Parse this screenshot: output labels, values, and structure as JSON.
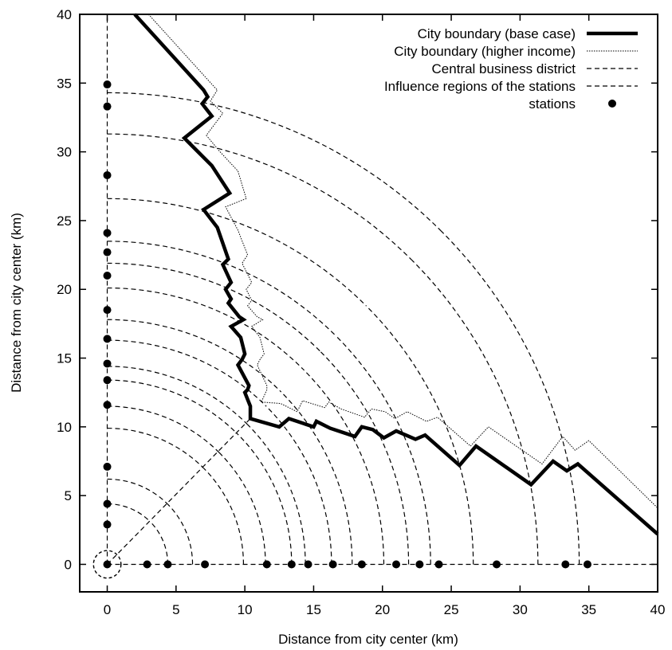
{
  "chart_data": {
    "type": "line",
    "xlabel": "Distance from city center (km)",
    "ylabel": "Distance from city center (km)",
    "xlim": [
      -2,
      40
    ],
    "ylim": [
      -2,
      40
    ],
    "xticks": [
      "0",
      "5",
      "10",
      "15",
      "20",
      "25",
      "30",
      "35",
      "40"
    ],
    "yticks": [
      "0",
      "5",
      "10",
      "15",
      "20",
      "25",
      "30",
      "35",
      "40"
    ],
    "grid": false,
    "legend_position": "top-right",
    "series": [
      {
        "name": "City boundary (base case)",
        "style": "thick-solid",
        "points": [
          [
            2,
            40
          ],
          [
            7,
            34.5
          ],
          [
            7.3,
            34
          ],
          [
            6.9,
            33.5
          ],
          [
            7.6,
            32.6
          ],
          [
            5.6,
            31
          ],
          [
            6.6,
            30
          ],
          [
            7.6,
            29
          ],
          [
            8.9,
            27
          ],
          [
            7,
            25.8
          ],
          [
            8,
            24.5
          ],
          [
            8.8,
            22.2
          ],
          [
            8.4,
            21.8
          ],
          [
            9,
            20.5
          ],
          [
            8.6,
            20
          ],
          [
            9,
            19.3
          ],
          [
            8.8,
            19
          ],
          [
            9.6,
            18
          ],
          [
            9.9,
            17.8
          ],
          [
            9,
            17.3
          ],
          [
            9.7,
            16.5
          ],
          [
            10,
            15.3
          ],
          [
            9.8,
            14.9
          ],
          [
            9.5,
            14.5
          ],
          [
            10.3,
            13
          ],
          [
            10.2,
            12.7
          ],
          [
            10,
            12.5
          ],
          [
            10.4,
            11.5
          ],
          [
            10.4,
            10.6
          ],
          [
            12.5,
            10
          ],
          [
            13.2,
            10.6
          ],
          [
            15,
            10
          ],
          [
            15.2,
            10.4
          ],
          [
            16.2,
            9.9
          ],
          [
            18,
            9.3
          ],
          [
            18.5,
            10
          ],
          [
            19.3,
            9.8
          ],
          [
            20.1,
            9.2
          ],
          [
            21,
            9.7
          ],
          [
            21.7,
            9.4
          ],
          [
            22.4,
            9.1
          ],
          [
            23.1,
            9.4
          ],
          [
            25.6,
            7.2
          ],
          [
            26.8,
            8.6
          ],
          [
            30.8,
            5.8
          ],
          [
            32.4,
            7.5
          ],
          [
            33.4,
            6.8
          ],
          [
            34.2,
            7.3
          ],
          [
            40,
            2.2
          ]
        ]
      },
      {
        "name": "City boundary (higher income)",
        "style": "thin-dotted",
        "points": [
          [
            3,
            40
          ],
          [
            7.8,
            34.7
          ],
          [
            8,
            34.5
          ],
          [
            7.5,
            33.7
          ],
          [
            8.4,
            32.8
          ],
          [
            7.2,
            31.2
          ],
          [
            8.2,
            30
          ],
          [
            9.5,
            28.6
          ],
          [
            10.1,
            26.6
          ],
          [
            8.6,
            26
          ],
          [
            9.5,
            24.3
          ],
          [
            10.2,
            22.5
          ],
          [
            9.8,
            21.9
          ],
          [
            10.5,
            20.5
          ],
          [
            10.1,
            20
          ],
          [
            10.5,
            19.2
          ],
          [
            10.2,
            18.8
          ],
          [
            10.9,
            18
          ],
          [
            11.3,
            17.8
          ],
          [
            10.5,
            17.3
          ],
          [
            11.1,
            16.5
          ],
          [
            11.4,
            15.3
          ],
          [
            11.1,
            14.9
          ],
          [
            10.9,
            14.5
          ],
          [
            11.6,
            13
          ],
          [
            11.6,
            12.7
          ],
          [
            11.2,
            11.8
          ],
          [
            12.6,
            11.7
          ],
          [
            13.8,
            11.1
          ],
          [
            14.2,
            11.9
          ],
          [
            15.8,
            11.4
          ],
          [
            16.1,
            11.8
          ],
          [
            17,
            11.3
          ],
          [
            18.7,
            10.7
          ],
          [
            19.2,
            11.3
          ],
          [
            20.2,
            11.1
          ],
          [
            20.9,
            10.6
          ],
          [
            21.8,
            11.1
          ],
          [
            22.4,
            10.8
          ],
          [
            23.2,
            10.4
          ],
          [
            24,
            10.7
          ],
          [
            26.4,
            8.6
          ],
          [
            27.7,
            10
          ],
          [
            31.6,
            7.3
          ],
          [
            33.1,
            9.3
          ],
          [
            34,
            8.3
          ],
          [
            35,
            9
          ],
          [
            40,
            4.1
          ]
        ]
      }
    ],
    "cbd_radius": 1,
    "influence_arcs_x": [
      4.4,
      6.2,
      9.9,
      11.5,
      13.4,
      14.4,
      16.3,
      17.8,
      20.1,
      21.9,
      23.5,
      26.6,
      31.3,
      34.3
    ],
    "influence_arcs_y": [
      4.4,
      6.2,
      9.9,
      11.5,
      13.4,
      14.4,
      16.3,
      17.8,
      20.1,
      21.9,
      23.5,
      26.6,
      31.3,
      34.3
    ],
    "stations_x": [
      [
        2.9,
        0
      ],
      [
        4.4,
        0
      ],
      [
        7.1,
        0
      ],
      [
        11.6,
        0
      ],
      [
        13.4,
        0
      ],
      [
        14.6,
        0
      ],
      [
        16.4,
        0
      ],
      [
        18.5,
        0
      ],
      [
        21,
        0
      ],
      [
        22.7,
        0
      ],
      [
        24.1,
        0
      ],
      [
        28.3,
        0
      ],
      [
        33.3,
        0
      ],
      [
        34.9,
        0
      ]
    ],
    "stations_y": [
      [
        0,
        2.9
      ],
      [
        0,
        4.4
      ],
      [
        0,
        7.1
      ],
      [
        0,
        11.6
      ],
      [
        0,
        13.4
      ],
      [
        0,
        14.6
      ],
      [
        0,
        16.4
      ],
      [
        0,
        18.5
      ],
      [
        0,
        21
      ],
      [
        0,
        22.7
      ],
      [
        0,
        24.1
      ],
      [
        0,
        28.3
      ],
      [
        0,
        33.3
      ],
      [
        0,
        34.9
      ]
    ],
    "station_origin": [
      0,
      0
    ],
    "legend": [
      {
        "label": "City boundary (base case)",
        "style": "thick-solid"
      },
      {
        "label": "City boundary (higher income)",
        "style": "thin-dotted"
      },
      {
        "label": "Central business district",
        "style": "dashed"
      },
      {
        "label": "Influence regions of the stations",
        "style": "dashed"
      },
      {
        "label": "stations",
        "style": "dot"
      }
    ]
  },
  "colors": {
    "axis": "#000000",
    "line": "#000000",
    "background": "#ffffff"
  }
}
